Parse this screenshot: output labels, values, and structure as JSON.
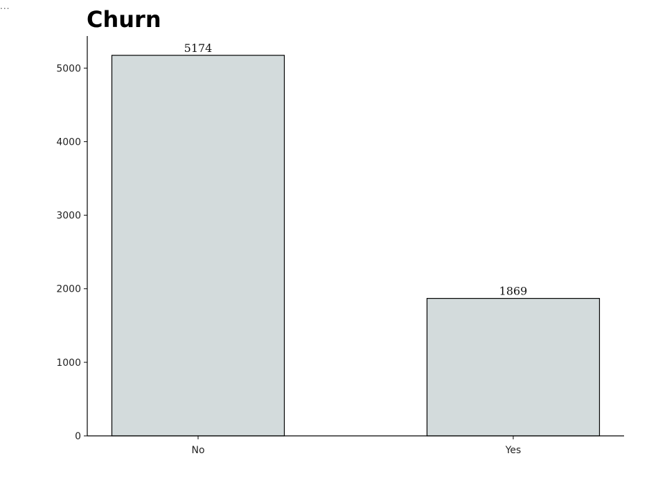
{
  "page": {
    "ellipsis": "..."
  },
  "chart_data": {
    "type": "bar",
    "title": "Churn",
    "xlabel": "",
    "ylabel": "",
    "categories": [
      "No",
      "Yes"
    ],
    "values": [
      5174,
      1869
    ],
    "data_labels": [
      "5174",
      "1869"
    ],
    "ylim": [
      0,
      5436
    ],
    "yticks": [
      0,
      1000,
      2000,
      3000,
      4000,
      5000
    ],
    "ytick_labels": [
      "0",
      "1000",
      "2000",
      "3000",
      "4000",
      "5000"
    ],
    "grid": false,
    "legend": "none",
    "colors": {
      "bar_fill": "#d3dbdc",
      "bar_edge": "#000000",
      "axis": "#000000"
    }
  }
}
